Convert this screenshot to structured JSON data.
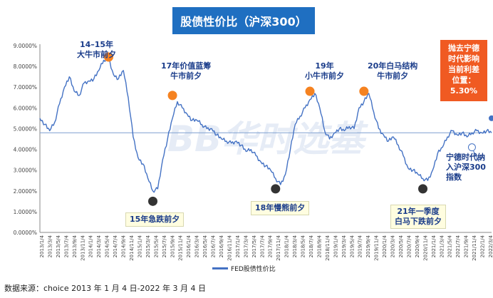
{
  "title": "股债性价比（沪深300）",
  "source": "数据来源：choice 2013 年 1 月 4 日-2022 年 3 月 4 日",
  "watermark": "BB华时选基",
  "callout": {
    "lines": [
      "抛去宁德",
      "时代影响",
      "当前利差",
      "位置：",
      "5.30%"
    ]
  },
  "annotations": {
    "a1415": [
      "14–15年",
      "大牛市前夕"
    ],
    "a17": [
      "17年价值蓝筹",
      "牛市前夕"
    ],
    "a19": [
      "19年",
      "小牛市前夕"
    ],
    "a20": [
      "20年白马结构",
      "牛市前夕"
    ],
    "a15crash": [
      "15年急跌前夕"
    ],
    "a18": [
      "18年慢熊前夕"
    ],
    "a21": [
      "21年一季度",
      "白马下跌前夕"
    ],
    "ningde": [
      "宁德时代纳",
      "入沪深300",
      "指数"
    ]
  },
  "chart_data": {
    "type": "line",
    "title": "股债性价比（沪深300）",
    "xlabel": "",
    "ylabel": "",
    "ylim": [
      0,
      9
    ],
    "y_tick_labels": [
      "0.0000%",
      "1.0000%",
      "2.0000%",
      "3.0000%",
      "4.0000%",
      "5.0000%",
      "6.0000%",
      "7.0000%",
      "8.0000%",
      "9.0000%"
    ],
    "x_tick_labels": [
      "2013/1/4",
      "2013/3/4",
      "2013/5/4",
      "2013/7/4",
      "2013/9/4",
      "2013/11/4",
      "2014/1/4",
      "2014/3/4",
      "2014/5/4",
      "2014/7/4",
      "2014/9/4",
      "2014/11/4",
      "2015/1/4",
      "2015/3/4",
      "2015/5/4",
      "2015/7/4",
      "2015/9/4",
      "2015/11/4",
      "2016/1/4",
      "2016/3/4",
      "2016/5/4",
      "2016/7/4",
      "2016/9/4",
      "2016/11/4",
      "2017/1/4",
      "2017/3/4",
      "2017/5/4",
      "2017/7/4",
      "2017/9/4",
      "2017/11/4",
      "2018/1/4",
      "2018/3/4",
      "2018/5/4",
      "2018/7/4",
      "2018/9/4",
      "2018/11/4",
      "2019/1/4",
      "2019/3/4",
      "2019/5/4",
      "2019/7/4",
      "2019/9/4",
      "2019/11/4",
      "2020/1/4",
      "2020/3/4",
      "2020/5/4",
      "2020/7/4",
      "2020/9/4",
      "2020/11/4",
      "2021/1/4",
      "2021/3/4",
      "2021/5/4",
      "2021/7/4",
      "2021/9/4",
      "2021/11/4",
      "2022/1/4",
      "2022/3/4"
    ],
    "legend": [
      "FED股债性价比"
    ],
    "legend_position": "bottom",
    "reference_line": 4.8,
    "series": [
      {
        "name": "FED股债性价比",
        "values": [
          5.5,
          5.2,
          4.9,
          5.3,
          6.2,
          7.0,
          7.5,
          6.8,
          6.6,
          7.2,
          7.3,
          7.4,
          7.8,
          8.3,
          8.4,
          7.6,
          7.4,
          7.8,
          6.5,
          4.6,
          3.6,
          3.3,
          2.6,
          2.0,
          2.1,
          3.5,
          4.5,
          5.5,
          6.3,
          6.0,
          5.7,
          5.4,
          5.4,
          5.2,
          5.0,
          5.0,
          4.7,
          4.5,
          4.4,
          4.3,
          4.4,
          4.2,
          3.9,
          4.0,
          3.7,
          3.4,
          3.2,
          3.0,
          2.6,
          2.3,
          2.8,
          4.0,
          5.2,
          5.6,
          6.0,
          6.4,
          6.7,
          6.0,
          4.9,
          4.5,
          4.8,
          5.0,
          4.9,
          5.1,
          5.0,
          6.0,
          6.3,
          6.7,
          5.8,
          5.0,
          4.7,
          4.4,
          4.6,
          4.2,
          3.7,
          3.1,
          3.0,
          2.8,
          2.6,
          2.5,
          3.0,
          3.8,
          4.1,
          4.6,
          4.9,
          4.7,
          4.8,
          4.6,
          4.8,
          4.9,
          4.8,
          4.9,
          4.8
        ],
        "color": "#4472c4"
      }
    ],
    "markers": [
      {
        "kind": "peak",
        "index": 14,
        "value": 8.45,
        "color": "#f58220"
      },
      {
        "kind": "peak",
        "index": 27,
        "value": 6.6,
        "color": "#f58220"
      },
      {
        "kind": "peak",
        "index": 55,
        "value": 6.8,
        "color": "#f58220"
      },
      {
        "kind": "peak",
        "index": 66,
        "value": 6.8,
        "color": "#f58220"
      },
      {
        "kind": "trough",
        "index": 23,
        "value": 1.5,
        "color": "#333333"
      },
      {
        "kind": "trough",
        "index": 48,
        "value": 2.1,
        "color": "#333333"
      },
      {
        "kind": "trough",
        "index": 78,
        "value": 2.1,
        "color": "#333333"
      },
      {
        "kind": "current",
        "index": 92,
        "value": 5.5,
        "color": "#4472c4"
      },
      {
        "kind": "ningde",
        "index": 88,
        "value": 4.1,
        "color": "#ffffff"
      }
    ]
  }
}
